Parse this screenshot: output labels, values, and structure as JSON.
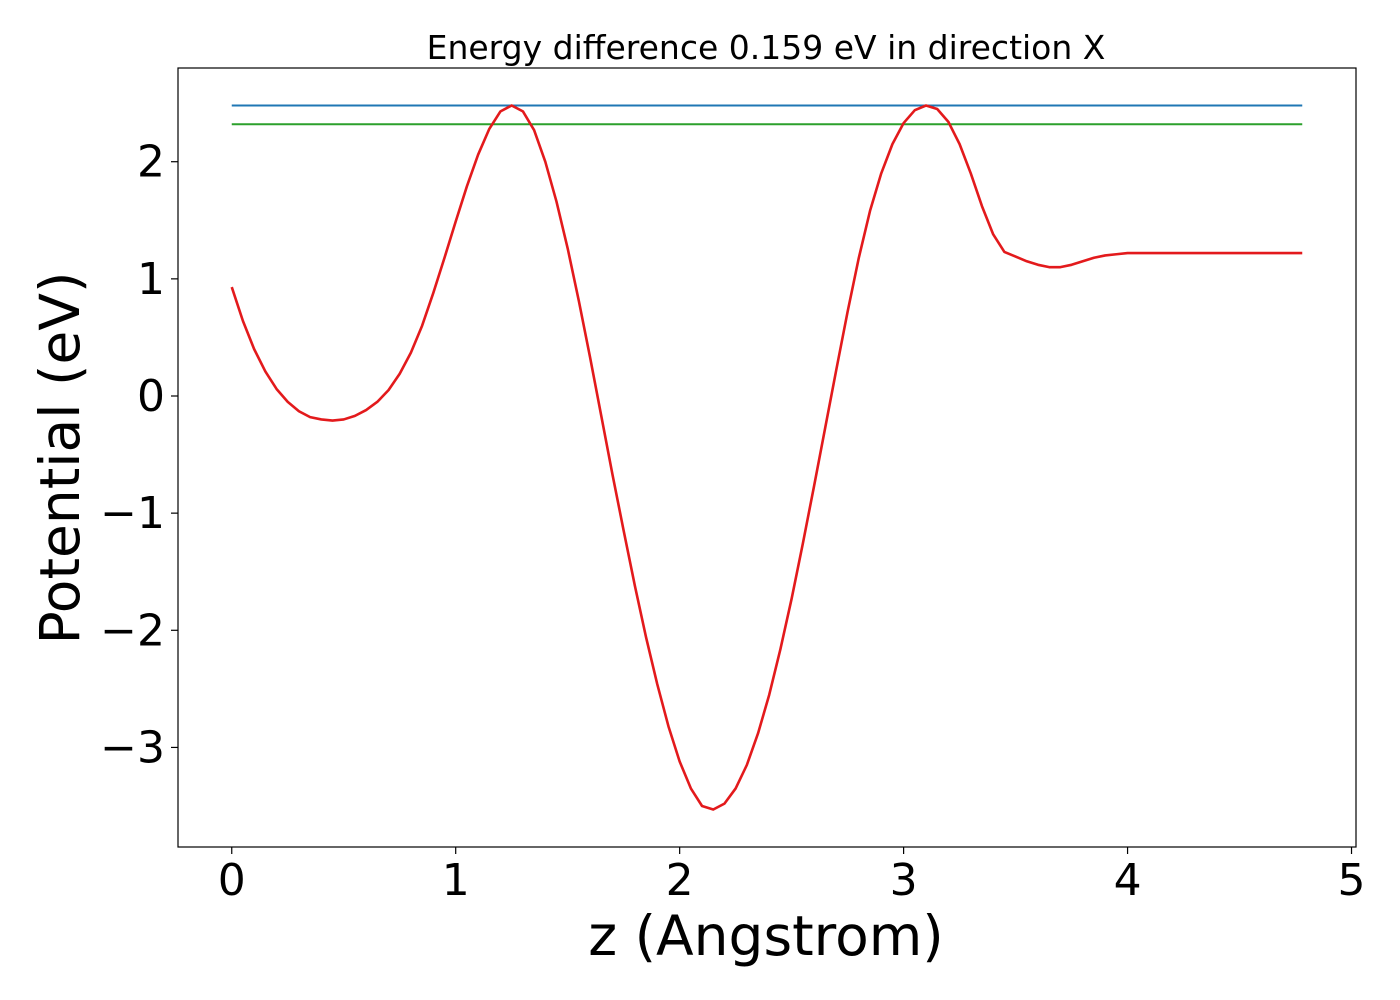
{
  "chart_data": {
    "type": "line",
    "title": "Energy difference 0.159 eV in direction X",
    "xlabel": "z (Angstrom)",
    "ylabel": "Potential (eV)",
    "xlim": [
      -0.24,
      5.02
    ],
    "ylim": [
      -3.85,
      2.8
    ],
    "xticks": [
      {
        "value": 0,
        "label": "0"
      },
      {
        "value": 1,
        "label": "1"
      },
      {
        "value": 2,
        "label": "2"
      },
      {
        "value": 3,
        "label": "3"
      },
      {
        "value": 4,
        "label": "4"
      },
      {
        "value": 5,
        "label": "5"
      }
    ],
    "yticks": [
      {
        "value": -3,
        "label": "−3"
      },
      {
        "value": -2,
        "label": "−2"
      },
      {
        "value": -1,
        "label": "−1"
      },
      {
        "value": 0,
        "label": "0"
      },
      {
        "value": 1,
        "label": "1"
      },
      {
        "value": 2,
        "label": "2"
      }
    ],
    "grid": false,
    "series": [
      {
        "color": "#1f77b4",
        "style": "horizontal",
        "x": [
          0,
          4.78
        ],
        "y": [
          2.48,
          2.48
        ]
      },
      {
        "color": "#2ca02c",
        "style": "horizontal",
        "x": [
          0,
          4.78
        ],
        "y": [
          2.32,
          2.32
        ]
      },
      {
        "color": "#e31a1c",
        "style": "curve",
        "x": [
          0,
          0.05,
          0.1,
          0.15,
          0.2,
          0.25,
          0.3,
          0.35,
          0.4,
          0.45,
          0.5,
          0.55,
          0.6,
          0.65,
          0.7,
          0.75,
          0.8,
          0.85,
          0.9,
          0.95,
          1.0,
          1.05,
          1.1,
          1.15,
          1.2,
          1.25,
          1.3,
          1.35,
          1.4,
          1.45,
          1.5,
          1.55,
          1.6,
          1.65,
          1.7,
          1.75,
          1.8,
          1.85,
          1.9,
          1.95,
          2.0,
          2.05,
          2.1,
          2.15,
          2.2,
          2.25,
          2.3,
          2.35,
          2.4,
          2.45,
          2.5,
          2.55,
          2.6,
          2.65,
          2.7,
          2.75,
          2.8,
          2.85,
          2.9,
          2.95,
          3.0,
          3.05,
          3.1,
          3.15,
          3.2,
          3.25,
          3.3,
          3.35,
          3.4,
          3.45,
          3.5,
          3.55,
          3.6,
          3.65,
          3.7,
          3.75,
          3.8,
          3.85,
          3.9,
          3.95,
          4.0,
          4.05,
          4.1,
          4.15,
          4.2,
          4.25,
          4.3,
          4.35,
          4.4,
          4.45,
          4.5,
          4.55,
          4.6,
          4.65,
          4.7,
          4.75,
          4.78
        ],
        "y": [
          0.93,
          0.64,
          0.4,
          0.21,
          0.06,
          -0.05,
          -0.13,
          -0.18,
          -0.2,
          -0.21,
          -0.2,
          -0.17,
          -0.12,
          -0.05,
          0.05,
          0.19,
          0.37,
          0.6,
          0.88,
          1.18,
          1.49,
          1.79,
          2.06,
          2.28,
          2.43,
          2.48,
          2.43,
          2.27,
          2.0,
          1.66,
          1.26,
          0.81,
          0.33,
          -0.17,
          -0.67,
          -1.15,
          -1.62,
          -2.06,
          -2.46,
          -2.82,
          -3.12,
          -3.35,
          -3.5,
          -3.53,
          -3.48,
          -3.35,
          -3.15,
          -2.88,
          -2.55,
          -2.16,
          -1.73,
          -1.26,
          -0.77,
          -0.27,
          0.23,
          0.72,
          1.18,
          1.58,
          1.9,
          2.15,
          2.33,
          2.44,
          2.48,
          2.45,
          2.34,
          2.15,
          1.9,
          1.62,
          1.38,
          1.23,
          1.19,
          1.15,
          1.12,
          1.1,
          1.1,
          1.12,
          1.15,
          1.18,
          1.2,
          1.21,
          1.22,
          1.22,
          1.22,
          1.22,
          1.22,
          1.22,
          1.22,
          1.22,
          1.22,
          1.22,
          1.22,
          1.22,
          1.22,
          1.22,
          1.22,
          1.22,
          1.22
        ]
      }
    ]
  }
}
